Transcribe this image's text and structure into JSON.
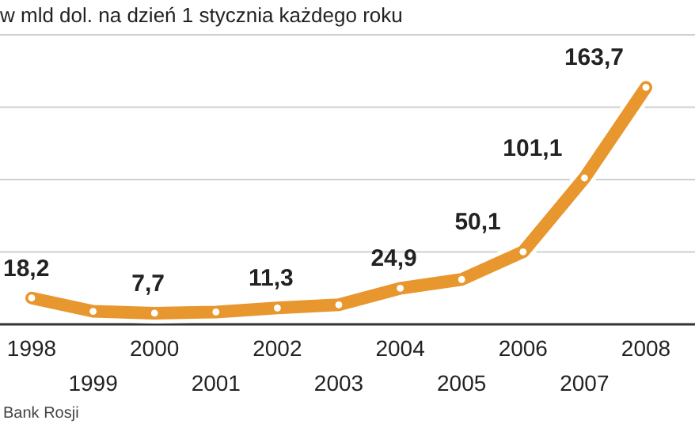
{
  "chart_data": {
    "type": "line",
    "title": "w mld dol. na dzień 1 stycznia każdego roku",
    "categories": [
      "1998",
      "1999",
      "2000",
      "2001",
      "2002",
      "2003",
      "2004",
      "2005",
      "2006",
      "2007",
      "2008"
    ],
    "values": [
      18.2,
      9,
      7.7,
      8.5,
      11.3,
      13.5,
      24.9,
      31,
      50.1,
      101.1,
      163.7
    ],
    "value_labels": [
      "18,2",
      null,
      "7,7",
      null,
      "11,3",
      null,
      "24,9",
      null,
      "50,1",
      "101,1",
      "163,7"
    ],
    "color": "#e8962e",
    "marker": "circle",
    "line_style": "solid",
    "grid": "y",
    "yticks": [
      {
        "value": 50,
        "label": null
      },
      {
        "value": 100,
        "label": null
      },
      {
        "value": 150,
        "label": null
      },
      {
        "value": 200,
        "label": null
      }
    ],
    "annotations": [
      "Bank Rosji"
    ]
  }
}
